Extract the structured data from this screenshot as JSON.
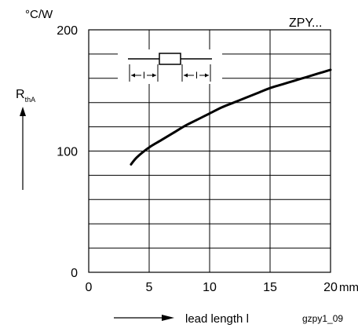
{
  "chart_data": {
    "type": "line",
    "title": "ZPY...",
    "ylabel": "R",
    "ylabel_sub": "thA",
    "y_unit": "°C/W",
    "xlabel": "lead length l",
    "x_unit": "mm",
    "figure_id": "gzpy1_09",
    "xlim": [
      0,
      20
    ],
    "ylim": [
      0,
      200
    ],
    "x_ticks": [
      {
        "label": "0",
        "value": 0
      },
      {
        "label": "5",
        "value": 5
      },
      {
        "label": "10",
        "value": 10
      },
      {
        "label": "15",
        "value": 15
      },
      {
        "label": "20",
        "value": 20
      }
    ],
    "y_ticks": [
      {
        "label": "0",
        "value": 0
      },
      {
        "label": "100",
        "value": 100
      },
      {
        "label": "200",
        "value": 200
      }
    ],
    "inset_labels": [
      "l",
      "l"
    ],
    "grid": true,
    "series": [
      {
        "x": [
          3.5,
          4,
          5,
          6,
          7,
          8,
          9,
          10,
          11,
          12,
          13,
          14,
          15,
          16,
          17,
          18,
          19,
          20
        ],
        "y": [
          89,
          95,
          103,
          109,
          115,
          121,
          126,
          131,
          136,
          140,
          144,
          148,
          152,
          155,
          158,
          161,
          164,
          167
        ]
      }
    ]
  }
}
